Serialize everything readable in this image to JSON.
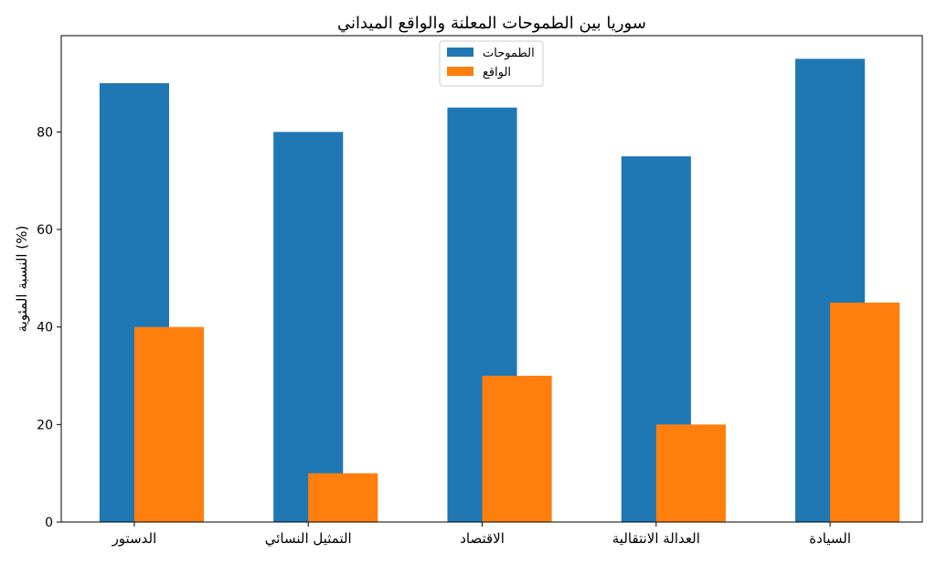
{
  "chart_data": {
    "type": "bar",
    "title": "سوريا بين الطموحات المعلنة والواقع الميداني",
    "xlabel": "",
    "ylabel": "النسبة المئوية (%)",
    "categories": [
      "الدستور",
      "التمثيل النسائي",
      "الاقتصاد",
      "العدالة الانتقالية",
      "السيادة"
    ],
    "series": [
      {
        "name": "الطموحات",
        "values": [
          90,
          80,
          85,
          75,
          95
        ],
        "color": "#1f77b4"
      },
      {
        "name": "الواقع",
        "values": [
          40,
          10,
          30,
          20,
          45
        ],
        "color": "#ff7f0e"
      }
    ],
    "ylim": [
      0,
      99.75
    ],
    "yticks": [
      0,
      20,
      40,
      60,
      80
    ],
    "grid": false,
    "legend_position": "top-center"
  }
}
